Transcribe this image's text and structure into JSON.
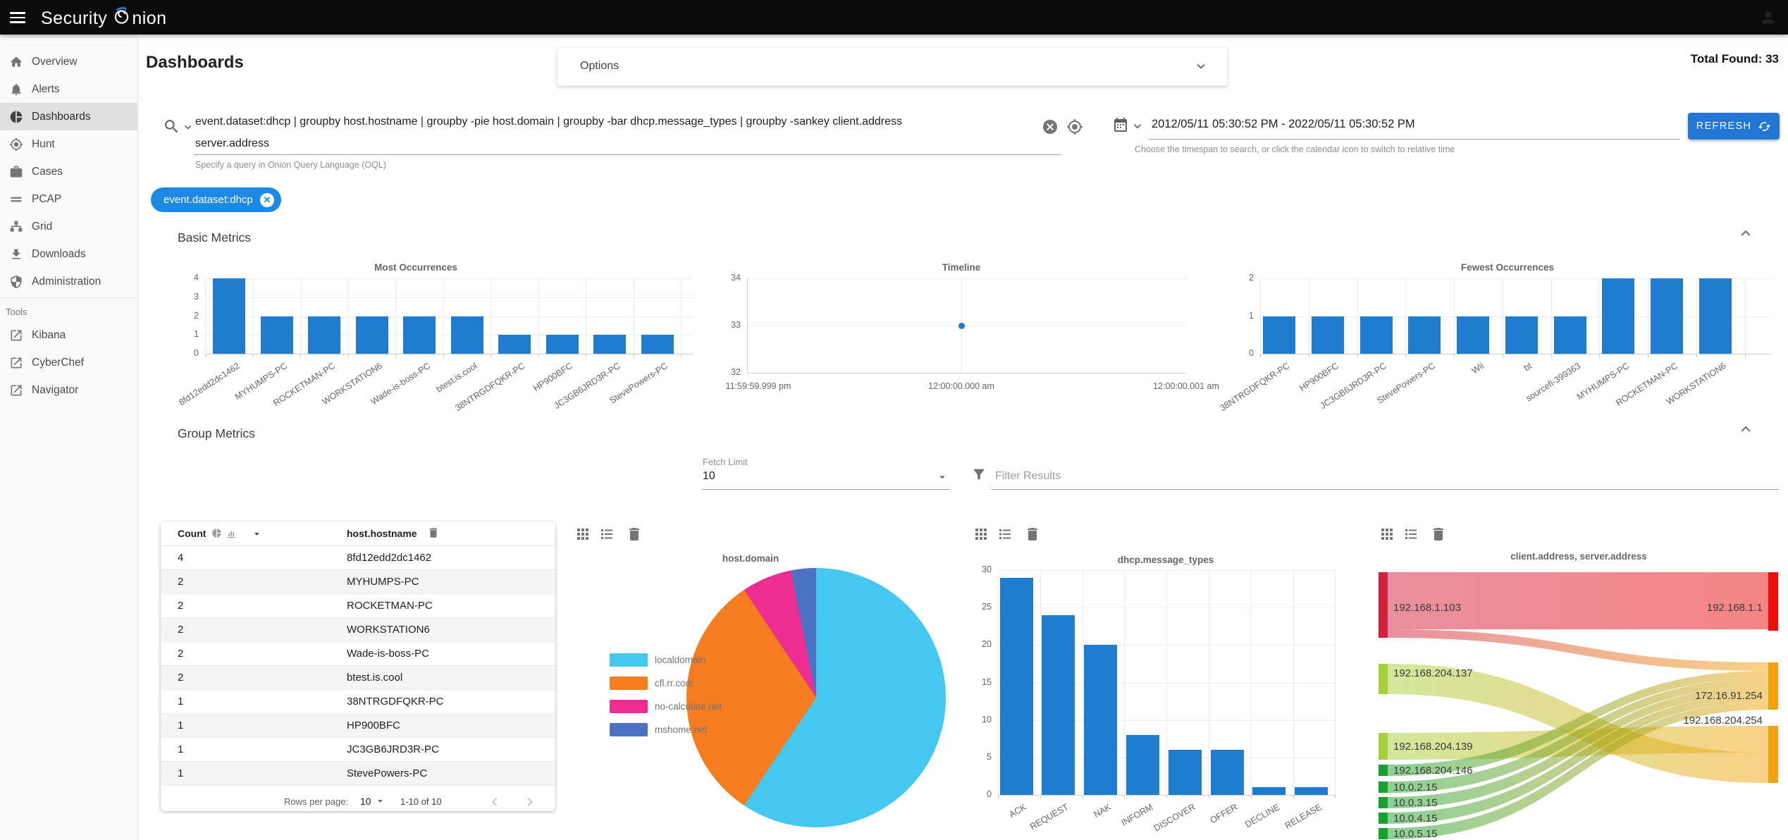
{
  "brand": {
    "prefix": "Security",
    "suffix": "nion",
    "full": "Security Onion"
  },
  "sidebar": {
    "items": [
      {
        "label": "Overview",
        "icon": "home-icon"
      },
      {
        "label": "Alerts",
        "icon": "bell-icon"
      },
      {
        "label": "Dashboards",
        "icon": "dashboards-pie-icon",
        "selected": true
      },
      {
        "label": "Hunt",
        "icon": "crosshair-icon"
      },
      {
        "label": "Cases",
        "icon": "briefcase-icon"
      },
      {
        "label": "PCAP",
        "icon": "pcap-lines-icon"
      },
      {
        "label": "Grid",
        "icon": "grid-sitemap-icon"
      },
      {
        "label": "Downloads",
        "icon": "download-icon"
      },
      {
        "label": "Administration",
        "icon": "shield-icon"
      }
    ],
    "tools_label": "Tools",
    "tools": [
      {
        "label": "Kibana",
        "icon": "external-link-icon"
      },
      {
        "label": "CyberChef",
        "icon": "external-link-icon"
      },
      {
        "label": "Navigator",
        "icon": "external-link-icon"
      }
    ]
  },
  "toolbar": {
    "page_title": "Dashboards",
    "options_label": "Options",
    "total_found": "Total Found: 33"
  },
  "query": {
    "line1": "event.dataset:dhcp | groupby host.hostname | groupby -pie host.domain | groupby -bar dhcp.message_types | groupby -sankey client.address",
    "line2": "server.address",
    "helper": "Specify a query in Onion Query Language (OQL)"
  },
  "timespan": {
    "value": "2012/05/11 05:30:52 PM - 2022/05/11 05:30:52 PM",
    "helper": "Choose the timespan to search, or click the calendar icon to switch to relative time"
  },
  "actions": {
    "refresh_label": "REFRESH"
  },
  "filters": {
    "chips": [
      "event.dataset:dhcp"
    ]
  },
  "sections": {
    "basic_metrics": "Basic Metrics",
    "group_metrics": "Group Metrics"
  },
  "group_controls": {
    "fetch_limit_label": "Fetch Limit",
    "fetch_limit_value": "10",
    "filter_placeholder": "Filter Results"
  },
  "table": {
    "columns": [
      {
        "label": "Count"
      },
      {
        "label": "host.hostname"
      }
    ],
    "rows": [
      {
        "count": "4",
        "hostname": "8fd12edd2dc1462"
      },
      {
        "count": "2",
        "hostname": "MYHUMPS-PC"
      },
      {
        "count": "2",
        "hostname": "ROCKETMAN-PC"
      },
      {
        "count": "2",
        "hostname": "WORKSTATION6"
      },
      {
        "count": "2",
        "hostname": "Wade-is-boss-PC"
      },
      {
        "count": "2",
        "hostname": "btest.is.cool"
      },
      {
        "count": "1",
        "hostname": "38NTRGDFQKR-PC"
      },
      {
        "count": "1",
        "hostname": "HP900BFC"
      },
      {
        "count": "1",
        "hostname": "JC3GB6JRD3R-PC"
      },
      {
        "count": "1",
        "hostname": "StevePowers-PC"
      }
    ],
    "footer": {
      "rows_per_page_label": "Rows per page:",
      "rows_per_page_value": "10",
      "range_label": "1-10 of 10"
    }
  },
  "chart_data": [
    {
      "id": "most",
      "type": "bar",
      "title": "Most Occurrences",
      "categories": [
        "8fd12edd2dc1462",
        "MYHUMPS-PC",
        "ROCKETMAN-PC",
        "WORKSTATION6",
        "Wade-is-boss-PC",
        "btest.is.cool",
        "38NTRGDFQKR-PC",
        "HP900BFC",
        "JC3GB6JRD3R-PC",
        "StevePowers-PC"
      ],
      "values": [
        4,
        2,
        2,
        2,
        2,
        2,
        1,
        1,
        1,
        1
      ],
      "yticks": [
        0,
        1,
        2,
        3,
        4
      ],
      "ylim": [
        0,
        4
      ],
      "bar_color": "#1f7ccf",
      "grid": true
    },
    {
      "id": "timeline",
      "type": "scatter",
      "title": "Timeline",
      "x_ticks": [
        "11:59:59.999 pm",
        "12:00:00.000 am",
        "12:00:00.001 am"
      ],
      "yticks": [
        32,
        33,
        34
      ],
      "ylim": [
        32,
        34
      ],
      "points": [
        {
          "x": "12:00:00.000 am",
          "y": 33
        }
      ],
      "point_color": "#1f78d1",
      "grid": true
    },
    {
      "id": "fewest",
      "type": "bar",
      "title": "Fewest Occurrences",
      "categories": [
        "38NTRGDFQKR-PC",
        "HP900BFC",
        "JC3GB6JRD3R-PC",
        "StevePowers-PC",
        "Wii",
        "bt",
        "sourcefi-399363",
        "MYHUMPS-PC",
        "ROCKETMAN-PC",
        "WORKSTATION6"
      ],
      "values": [
        1,
        1,
        1,
        1,
        1,
        1,
        1,
        2,
        2,
        2
      ],
      "yticks": [
        0,
        1,
        2
      ],
      "ylim": [
        0,
        2
      ],
      "bar_color": "#1f7ccf",
      "grid": true
    },
    {
      "id": "domain",
      "type": "pie",
      "title": "host.domain",
      "legend_position": "left",
      "slices": [
        {
          "label": "localdomain",
          "value": 19,
          "color": "#45c8f0"
        },
        {
          "label": "cfl.rr.com",
          "value": 10,
          "color": "#f57c1f"
        },
        {
          "label": "no-calculate.net",
          "value": 2,
          "color": "#ee2d92"
        },
        {
          "label": "mshome.net",
          "value": 1,
          "color": "#4c72c4"
        }
      ]
    },
    {
      "id": "msgtypes",
      "type": "bar",
      "title": "dhcp.message_types",
      "categories": [
        "ACK",
        "REQUEST",
        "NAK",
        "INFORM",
        "DISCOVER",
        "OFFER",
        "DECLINE",
        "RELEASE"
      ],
      "values": [
        29,
        24,
        20,
        8,
        6,
        6,
        1,
        1
      ],
      "yticks": [
        0,
        5,
        10,
        15,
        20,
        25,
        30
      ],
      "ylim": [
        0,
        30
      ],
      "bar_color": "#1f7ccf",
      "grid": true
    },
    {
      "id": "sankey",
      "type": "sankey",
      "title": "client.address, server.address",
      "nodes": [
        {
          "id": "192.168.1.103",
          "side": "left",
          "color": "#d2203f"
        },
        {
          "id": "192.168.204.137",
          "side": "left",
          "color": "#a6ce39"
        },
        {
          "id": "192.168.204.139",
          "side": "left",
          "color": "#a6ce39"
        },
        {
          "id": "192.168.204.146",
          "side": "left",
          "color": "#18a12e"
        },
        {
          "id": "10.0.2.15",
          "side": "left",
          "color": "#18a12e"
        },
        {
          "id": "10.0.3.15",
          "side": "left",
          "color": "#18a12e"
        },
        {
          "id": "10.0.4.15",
          "side": "left",
          "color": "#18a12e"
        },
        {
          "id": "10.0.5.15",
          "side": "left",
          "color": "#18a12e"
        },
        {
          "id": "192.168.1.1",
          "side": "right",
          "color": "#ee0c0c"
        },
        {
          "id": "172.16.91.254",
          "side": "right",
          "color": "#f2a40e"
        },
        {
          "id": "192.168.204.254",
          "side": "right",
          "color": "#f2a40e"
        }
      ],
      "links": [
        {
          "source": "192.168.1.103",
          "target": "192.168.1.1",
          "value": 13
        },
        {
          "source": "192.168.1.103",
          "target": "172.16.91.254",
          "value": 2
        },
        {
          "source": "192.168.204.139",
          "target": "192.168.204.254",
          "value": 6
        },
        {
          "source": "192.168.204.137",
          "target": "192.168.204.254",
          "value": 7
        },
        {
          "source": "192.168.204.146",
          "target": "172.16.91.254",
          "value": 1
        },
        {
          "source": "10.0.2.15",
          "target": "172.16.91.254",
          "value": 1
        },
        {
          "source": "10.0.3.15",
          "target": "172.16.91.254",
          "value": 1
        },
        {
          "source": "10.0.4.15",
          "target": "172.16.91.254",
          "value": 1
        },
        {
          "source": "10.0.5.15",
          "target": "172.16.91.254",
          "value": 1
        }
      ]
    }
  ]
}
